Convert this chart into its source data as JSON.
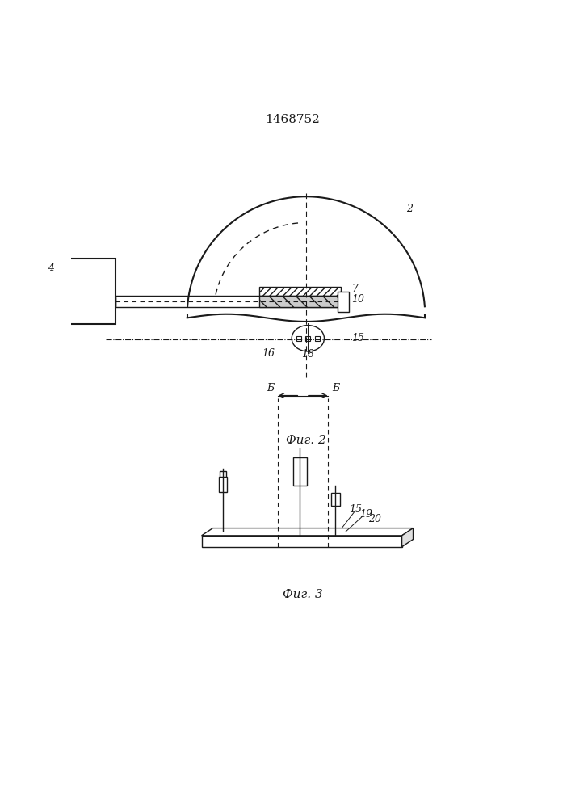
{
  "title": "1468752",
  "fig2_caption": "Фиг. 2",
  "fig3_caption": "Фиг. 3",
  "bg_color": "#ffffff",
  "line_color": "#1a1a1a",
  "font_size_title": 11,
  "font_size_label": 9,
  "font_size_caption": 11
}
